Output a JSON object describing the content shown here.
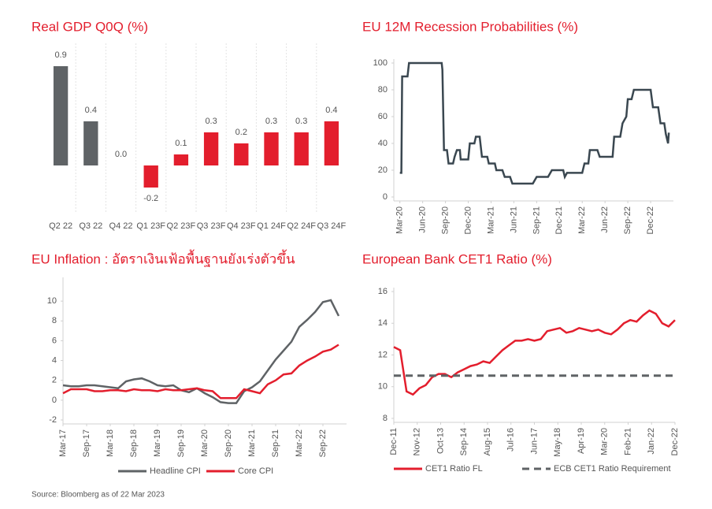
{
  "chart_data": [
    {
      "type": "bar",
      "title": "Real GDP Q0Q (%)",
      "categories": [
        "Q2 22",
        "Q3 22",
        "Q4 22",
        "Q1 23F",
        "Q2 23F",
        "Q3 23F",
        "Q4 23F",
        "Q1 24F",
        "Q2 24F",
        "Q3 24F"
      ],
      "values": [
        0.9,
        0.4,
        0.0,
        -0.2,
        0.1,
        0.3,
        0.2,
        0.3,
        0.3,
        0.4
      ],
      "value_labels": [
        "0.9",
        "0.4",
        "0.0",
        "-0.2",
        "0.1",
        "0.3",
        "0.2",
        "0.3",
        "0.3",
        "0.4"
      ],
      "colors": [
        "#5f6366",
        "#5f6366",
        "#5f6366",
        "#e31e2d",
        "#e31e2d",
        "#e31e2d",
        "#e31e2d",
        "#e31e2d",
        "#e31e2d",
        "#e31e2d"
      ],
      "ylim": [
        -0.3,
        1.0
      ]
    },
    {
      "type": "line",
      "title": "EU 12M Recession Probabilities (%)",
      "x": [
        0,
        0.2,
        0.3,
        1,
        1.2,
        2.5,
        3,
        5.5,
        5.6,
        5.8,
        6.2,
        6.4,
        7,
        7.2,
        7.5,
        7.9,
        8,
        9,
        9.2,
        9.8,
        10,
        10.5,
        10.8,
        11.5,
        11.7,
        12.5,
        12.7,
        13.5,
        13.8,
        14.5,
        14.8,
        17.5,
        18,
        19.5,
        20,
        21.5,
        21.7,
        22,
        24,
        24.3,
        24.8,
        25,
        26,
        26.3,
        28,
        28.2,
        29,
        29.3,
        29.8,
        30,
        30.5,
        30.8,
        33,
        33.3,
        34,
        34.3,
        34.8,
        35,
        35.3,
        35.4
      ],
      "values": [
        18,
        18,
        90,
        90,
        100,
        100,
        100,
        100,
        95,
        35,
        35,
        25,
        25,
        30,
        35,
        35,
        28,
        28,
        40,
        40,
        45,
        45,
        30,
        30,
        25,
        25,
        20,
        20,
        15,
        15,
        10,
        10,
        15,
        15,
        20,
        20,
        15,
        18,
        18,
        25,
        25,
        35,
        35,
        30,
        30,
        45,
        45,
        55,
        60,
        73,
        73,
        80,
        80,
        67,
        67,
        55,
        55,
        47,
        40,
        48
      ],
      "color": "#3a4750",
      "xlim": [
        -0.8,
        36
      ],
      "xticks": [
        {
          "value": 0,
          "label": "Mar-20"
        },
        {
          "value": 3,
          "label": "Jun-20"
        },
        {
          "value": 6,
          "label": "Sep-20"
        },
        {
          "value": 9,
          "label": "Dec-20"
        },
        {
          "value": 12,
          "label": "Mar-21"
        },
        {
          "value": 15,
          "label": "Jun-21"
        },
        {
          "value": 18,
          "label": "Sep-21"
        },
        {
          "value": 21,
          "label": "Dec-21"
        },
        {
          "value": 24,
          "label": "Mar-22"
        },
        {
          "value": 27,
          "label": "Jun-22"
        },
        {
          "value": 30,
          "label": "Sep-22"
        },
        {
          "value": 33,
          "label": "Dec-22"
        }
      ],
      "ylim": [
        0,
        100
      ],
      "yticks": [
        0,
        20,
        40,
        60,
        80,
        100
      ]
    },
    {
      "type": "line",
      "title": "EU Inflation : อัตราเงินเฟ้อพื้นฐานยังเร่งตัวขึ้น",
      "x": [
        0,
        2,
        4,
        6,
        8,
        10,
        12,
        14,
        16,
        18,
        20,
        22,
        24,
        26,
        28,
        30,
        32,
        34,
        36,
        38,
        40,
        42,
        44,
        46,
        48,
        50,
        52,
        54,
        56,
        58,
        60,
        62,
        64,
        66,
        68,
        70
      ],
      "series": [
        {
          "name": "Headline CPI",
          "color": "#5f6366",
          "values": [
            1.5,
            1.4,
            1.4,
            1.5,
            1.5,
            1.4,
            1.3,
            1.2,
            1.9,
            2.1,
            2.2,
            1.9,
            1.5,
            1.4,
            1.5,
            1.0,
            0.8,
            1.2,
            0.7,
            0.3,
            -0.2,
            -0.3,
            -0.3,
            0.9,
            1.3,
            1.9,
            3.0,
            4.1,
            5.0,
            5.9,
            7.4,
            8.1,
            8.9,
            9.9,
            10.1,
            8.5
          ]
        },
        {
          "name": "Core CPI",
          "color": "#e31e2d",
          "values": [
            0.7,
            1.1,
            1.1,
            1.1,
            0.9,
            0.9,
            1.0,
            1.0,
            0.9,
            1.1,
            1.0,
            1.0,
            0.9,
            1.1,
            1.0,
            1.0,
            1.1,
            1.2,
            1.0,
            0.9,
            0.2,
            0.2,
            0.2,
            1.1,
            0.9,
            0.7,
            1.6,
            2.0,
            2.6,
            2.7,
            3.5,
            4.0,
            4.4,
            4.9,
            5.1,
            5.6
          ]
        }
      ],
      "xlim": [
        0,
        72
      ],
      "xticks": [
        {
          "value": 0,
          "label": "Mar-17"
        },
        {
          "value": 6,
          "label": "Sep-17"
        },
        {
          "value": 12,
          "label": "Mar-18"
        },
        {
          "value": 18,
          "label": "Sep-18"
        },
        {
          "value": 24,
          "label": "Mar-19"
        },
        {
          "value": 30,
          "label": "Sep-19"
        },
        {
          "value": 36,
          "label": "Mar-20"
        },
        {
          "value": 42,
          "label": "Sep-20"
        },
        {
          "value": 48,
          "label": "Mar-21"
        },
        {
          "value": 54,
          "label": "Sep-21"
        },
        {
          "value": 60,
          "label": "Mar-22"
        },
        {
          "value": 66,
          "label": "Sep-22"
        }
      ],
      "ylim": [
        -2,
        12
      ],
      "yticks": [
        -2,
        0,
        2,
        4,
        6,
        8,
        10
      ]
    },
    {
      "type": "line",
      "title": "European Bank CET1 Ratio (%)",
      "series": [
        {
          "name": "CET1 Ratio FL",
          "color": "#e31e2d",
          "x": [
            0,
            3,
            6,
            9,
            12,
            15,
            18,
            21,
            24,
            27,
            30,
            33,
            36,
            39,
            42,
            45,
            48,
            51,
            54,
            57,
            60,
            63,
            66,
            69,
            72,
            75,
            78,
            81,
            84,
            87,
            90,
            93,
            96,
            99,
            102,
            105,
            108,
            111,
            114,
            117,
            120,
            123,
            126,
            129,
            132
          ],
          "values": [
            12.5,
            12.3,
            9.7,
            9.5,
            9.9,
            10.1,
            10.6,
            10.8,
            10.8,
            10.6,
            10.9,
            11.1,
            11.3,
            11.4,
            11.6,
            11.5,
            11.9,
            12.3,
            12.6,
            12.9,
            12.9,
            13.0,
            12.9,
            13.0,
            13.5,
            13.6,
            13.7,
            13.4,
            13.5,
            13.7,
            13.6,
            13.5,
            13.6,
            13.4,
            13.3,
            13.6,
            14.0,
            14.2,
            14.1,
            14.5,
            14.8,
            14.6,
            14.0,
            13.8,
            14.2
          ]
        },
        {
          "name": "ECB CET1 Ratio Requirement",
          "color": "#5f6366",
          "dashed": true,
          "x": [
            0,
            132
          ],
          "values": [
            10.7,
            10.7
          ]
        }
      ],
      "xlim": [
        0,
        132
      ],
      "xticks": [
        {
          "value": 0,
          "label": "Dec-11"
        },
        {
          "value": 11,
          "label": "Nov-12"
        },
        {
          "value": 22,
          "label": "Oct-13"
        },
        {
          "value": 33,
          "label": "Sep-14"
        },
        {
          "value": 44,
          "label": "Aug-15"
        },
        {
          "value": 55,
          "label": "Jul-16"
        },
        {
          "value": 66,
          "label": "Jun-17"
        },
        {
          "value": 77,
          "label": "May-18"
        },
        {
          "value": 88,
          "label": "Apr-19"
        },
        {
          "value": 99,
          "label": "Mar-20"
        },
        {
          "value": 110,
          "label": "Feb-21"
        },
        {
          "value": 121,
          "label": "Jan-22"
        },
        {
          "value": 132,
          "label": "Dec-22"
        }
      ],
      "ylim": [
        8,
        16
      ],
      "yticks": [
        8,
        10,
        12,
        14,
        16
      ]
    }
  ],
  "source": "Source: Bloomberg as of 22 Mar 2023"
}
